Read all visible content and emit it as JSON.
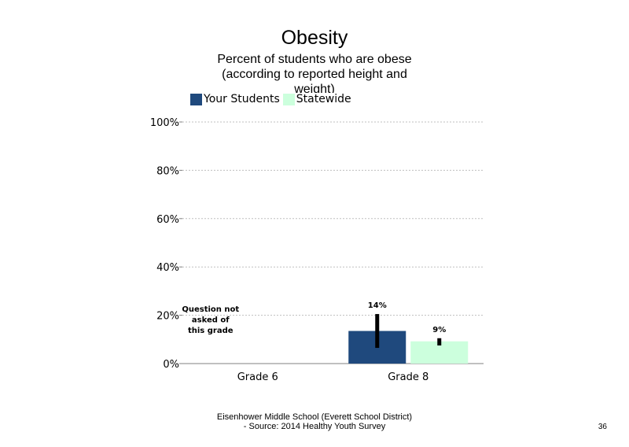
{
  "title": "Obesity",
  "subtitle": "Percent of students who are obese (according to reported height and weight)",
  "footer": {
    "line1": "Eisenhower Middle School (Everett School District)",
    "line2": "- Source: 2014 Healthy Youth Survey"
  },
  "page_number": "36",
  "colors": {
    "your_students": "#1f497d",
    "statewide": "#ccffdd",
    "error_bar": "#000000",
    "grid": "#bfbfbf"
  },
  "chart_data": {
    "type": "bar",
    "categories": [
      "Grade 6",
      "Grade 8"
    ],
    "series": [
      {
        "name": "Your Students",
        "values": [
          null,
          13.5
        ],
        "labels": [
          "",
          "14%"
        ],
        "error": [
          null,
          [
            6.5,
            20.5
          ]
        ]
      },
      {
        "name": "Statewide",
        "values": [
          null,
          9.2
        ],
        "labels": [
          "",
          "9%"
        ],
        "error": [
          null,
          [
            7.5,
            10.5
          ]
        ]
      }
    ],
    "yticks": [
      "0%",
      "20%",
      "40%",
      "60%",
      "80%",
      "100%"
    ],
    "ylim": [
      0,
      100
    ],
    "grid": true,
    "legend_position": "top",
    "annotations": [
      {
        "category": "Grade 6",
        "lines": [
          "Question not",
          "asked of",
          "this grade"
        ]
      }
    ]
  }
}
